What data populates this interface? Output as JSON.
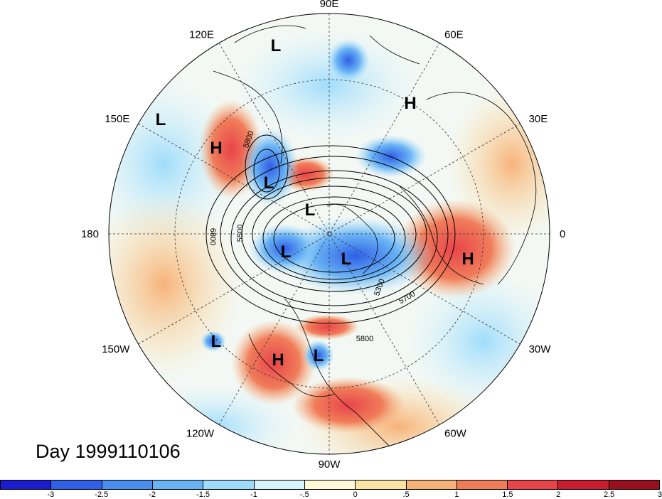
{
  "map": {
    "longitude_labels": [
      {
        "text": "90E",
        "angle": 90
      },
      {
        "text": "60E",
        "angle": 60
      },
      {
        "text": "30E",
        "angle": 30
      },
      {
        "text": "0",
        "angle": 0
      },
      {
        "text": "30W",
        "angle": -30
      },
      {
        "text": "60W",
        "angle": -60
      },
      {
        "text": "90W",
        "angle": -90
      },
      {
        "text": "120W",
        "angle": -120
      },
      {
        "text": "150W",
        "angle": -150
      },
      {
        "text": "180",
        "angle": 180
      },
      {
        "text": "150E",
        "angle": 150
      },
      {
        "text": "120E",
        "angle": 120
      }
    ],
    "pressure_centers": [
      "L",
      "H",
      "L",
      "H",
      "L",
      "L",
      "L",
      "L",
      "H",
      "L",
      "H",
      "L"
    ],
    "contour_labels": [
      "5800",
      "5500",
      "6800",
      "5300",
      "5700",
      "5800"
    ]
  },
  "day_label": "Day 1999110106",
  "colorbar": {
    "colors": [
      "#1b1bd0",
      "#2f5fe6",
      "#4a8ef0",
      "#6ab4f5",
      "#9fdcfb",
      "#d7f4fd",
      "#fff9d8",
      "#fbe3a6",
      "#f7b27a",
      "#f07d5a",
      "#e8444a",
      "#c81d2e",
      "#9a0f1e"
    ],
    "ticks": [
      "-3",
      "-2.5",
      "-2",
      "-1.5",
      "-1",
      "-.5",
      "0",
      ".5",
      "1",
      "1.5",
      "2",
      "2.5",
      "3"
    ]
  }
}
